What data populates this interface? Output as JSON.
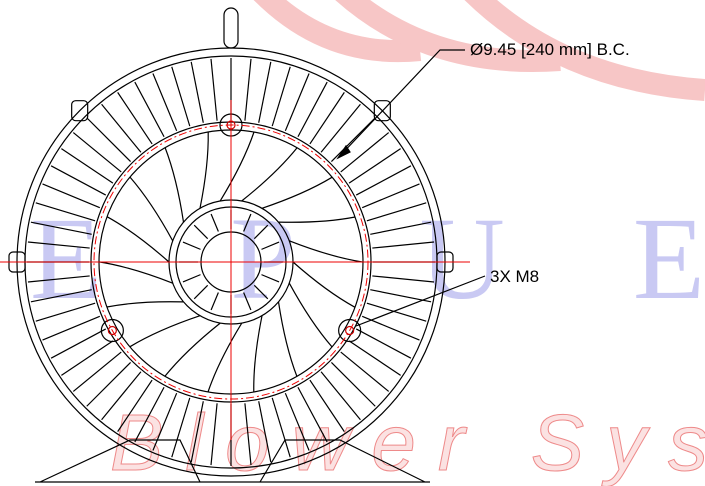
{
  "annotations": {
    "bolt_circle": "Ø9.45 [240 mm] B.C.",
    "bolt": "3X M8"
  },
  "watermark": {
    "brand": "E P U E",
    "tagline": "Blower Sys"
  }
}
